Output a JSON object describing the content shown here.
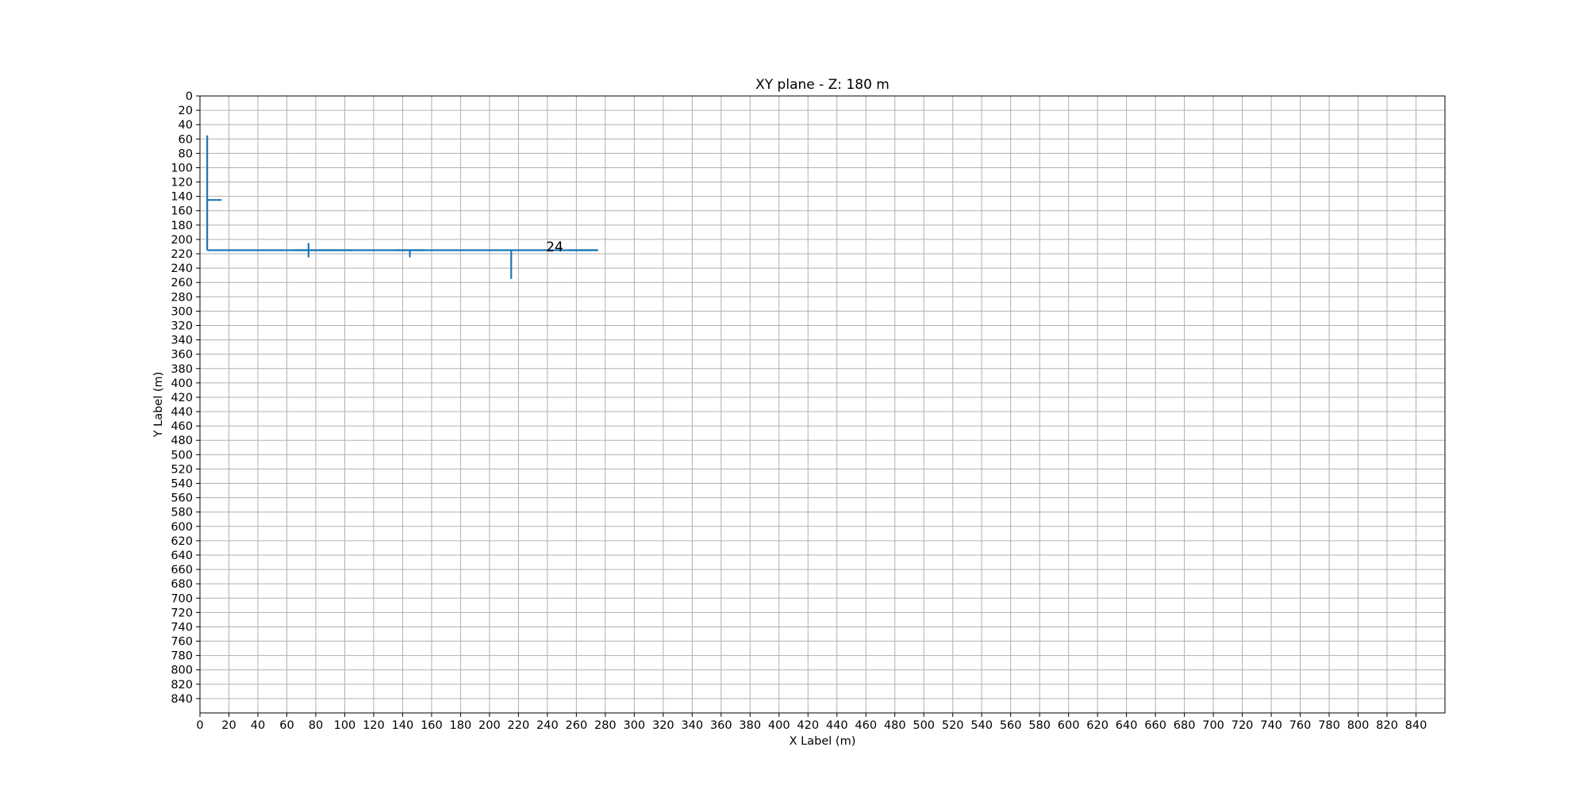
{
  "chart_data": {
    "type": "line",
    "title": "XY plane - Z: 180 m",
    "xlabel": "X Label (m)",
    "ylabel": "Y Label (m)",
    "xlim": [
      0,
      860
    ],
    "ylim": [
      860,
      0
    ],
    "y_inverted": true,
    "grid": true,
    "x_ticks": [
      0,
      20,
      40,
      60,
      80,
      100,
      120,
      140,
      160,
      180,
      200,
      220,
      240,
      260,
      280,
      300,
      320,
      340,
      360,
      380,
      400,
      420,
      440,
      460,
      480,
      500,
      520,
      540,
      560,
      580,
      600,
      620,
      640,
      660,
      680,
      700,
      720,
      740,
      760,
      780,
      800,
      820,
      840
    ],
    "y_ticks": [
      0,
      20,
      40,
      60,
      80,
      100,
      120,
      140,
      160,
      180,
      200,
      220,
      240,
      260,
      280,
      300,
      320,
      340,
      360,
      380,
      400,
      420,
      440,
      460,
      480,
      500,
      520,
      540,
      560,
      580,
      600,
      620,
      640,
      660,
      680,
      700,
      720,
      740,
      760,
      780,
      800,
      820,
      840
    ],
    "line_color": "#1f77b4",
    "segments": [
      {
        "x": [
          5,
          5
        ],
        "y": [
          55,
          215
        ]
      },
      {
        "x": [
          5,
          15
        ],
        "y": [
          145,
          145
        ]
      },
      {
        "x": [
          5,
          275
        ],
        "y": [
          215,
          215
        ]
      },
      {
        "x": [
          65,
          105
        ],
        "y": [
          215,
          215
        ]
      },
      {
        "x": [
          75,
          75
        ],
        "y": [
          205,
          225
        ]
      },
      {
        "x": [
          135,
          155
        ],
        "y": [
          215,
          215
        ]
      },
      {
        "x": [
          145,
          145
        ],
        "y": [
          215,
          225
        ]
      },
      {
        "x": [
          215,
          215
        ],
        "y": [
          215,
          255
        ]
      },
      {
        "x": [
          255,
          275
        ],
        "y": [
          215,
          215
        ]
      }
    ],
    "annotations": [
      {
        "text": "24",
        "x": 245,
        "y": 210
      }
    ]
  }
}
